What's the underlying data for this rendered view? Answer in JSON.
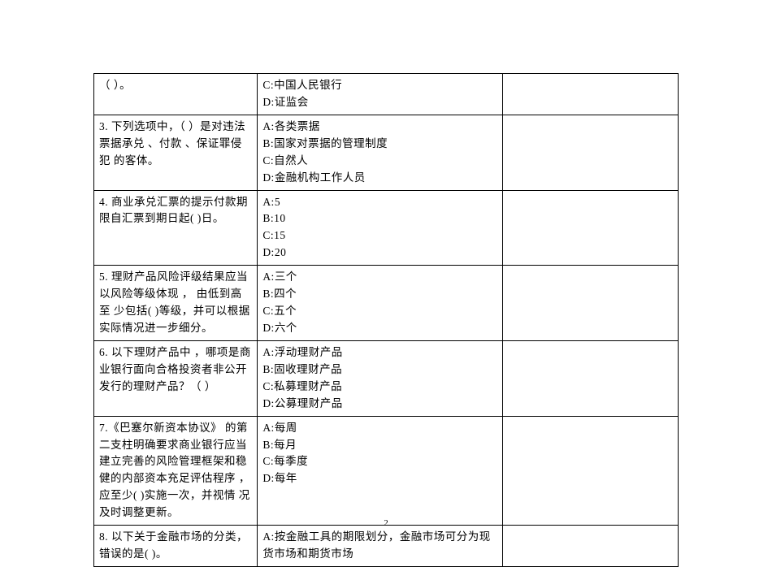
{
  "page_number": "2",
  "table": {
    "border_color": "#000000",
    "background": "#ffffff",
    "font_size_pt": 10,
    "rows": [
      {
        "question": "（    ）。",
        "options": [
          "C:中国人民银行",
          "D:证监会"
        ],
        "answer": ""
      },
      {
        "question": "3. 下列选项中，（    ）是对违法  票据承兑  、付款  、保证罪侵犯  的客体。",
        "options": [
          "A:各类票据",
          "B:国家对票据的管理制度",
          "C:自然人",
          "D:金融机构工作人员"
        ],
        "answer": ""
      },
      {
        "question": "4. 商业承兑汇票的提示付款期限自汇票到期日起(    )日。",
        "options": [
          "A:5",
          "B:10",
          "C:15",
          "D:20"
        ],
        "answer": ""
      },
      {
        "question": "5. 理财产品风险评级结果应当以风险等级体现  ，    由低到高至   少包括(    )等级，并可以根据  实际情况进一步细分。",
        "options": [
          "A:三个",
          "B:四个",
          "C:五个",
          "D:六个"
        ],
        "answer": ""
      },
      {
        "question": "6.   以下理财产品中  ，哪项是商   业银行面向合格投资者非公开   发行的理财产品？（    ）",
        "options": [
          "A:浮动理财产品",
          "B:固收理财产品",
          "C:私募理财产品",
          "D:公募理财产品"
        ],
        "answer": ""
      },
      {
        "question": "7.《巴塞尔新资本协议》  的第   二支柱明确要求商业银行应当   建立完善的风险管理框架和稳   健的内部资本充足评估程序  ，    应至少(    )实施一次，并视情  况及时调整更新。",
        "options": [
          "A:每周",
          "B:每月",
          "C:每季度",
          "D:每年"
        ],
        "answer": ""
      },
      {
        "question": "8.   以下关于金融市场的分类，   错误的是(    )。",
        "options": [
          "A:按金融工具的期限划分，金融市场可分为现货市场和期货市场"
        ],
        "answer": ""
      }
    ]
  }
}
